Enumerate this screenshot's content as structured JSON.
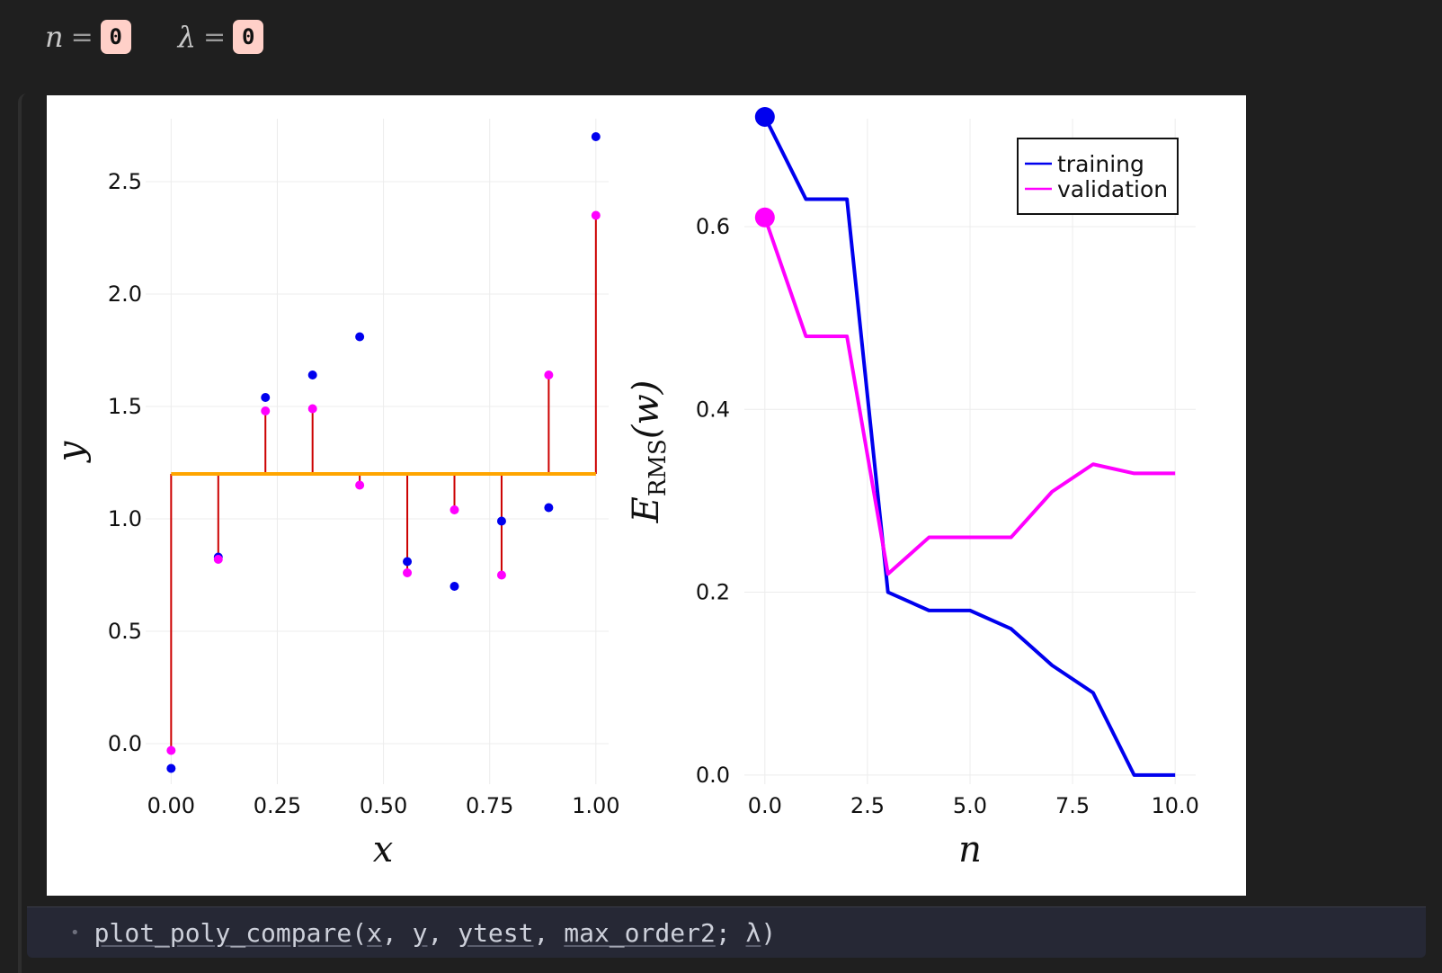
{
  "params": {
    "n": {
      "symbol": "n",
      "eq": "=",
      "value": "0"
    },
    "lambda": {
      "symbol": "λ",
      "eq": "=",
      "value": "0"
    }
  },
  "colors": {
    "training": "#0000ee",
    "validation": "#ff00ff",
    "fit_line": "#ffa500",
    "residual": "#cc0000",
    "background": "#1f1f1f",
    "code_bg": "#262835"
  },
  "chart_data": [
    {
      "type": "scatter",
      "xlabel": "x",
      "ylabel": "y",
      "xlim": [
        -0.06,
        1.03
      ],
      "ylim": [
        -0.18,
        2.78
      ],
      "xticks": [
        "0.00",
        "0.25",
        "0.50",
        "0.75",
        "1.00"
      ],
      "yticks": [
        "0.0",
        "0.5",
        "1.0",
        "1.5",
        "2.0",
        "2.5"
      ],
      "grid": true,
      "series": [
        {
          "role": "training",
          "x": [
            0.0,
            0.111,
            0.222,
            0.333,
            0.444,
            0.556,
            0.667,
            0.778,
            0.889,
            1.0
          ],
          "y": [
            -0.11,
            0.83,
            1.54,
            1.64,
            1.81,
            0.81,
            0.7,
            0.99,
            1.05,
            2.7
          ]
        },
        {
          "role": "validation",
          "x": [
            0.0,
            0.111,
            0.222,
            0.333,
            0.444,
            0.556,
            0.667,
            0.778,
            0.889,
            1.0
          ],
          "y": [
            -0.03,
            0.82,
            1.48,
            1.49,
            1.15,
            0.76,
            1.04,
            0.75,
            1.64,
            2.35
          ]
        },
        {
          "role": "fit",
          "x": [
            0.0,
            1.0
          ],
          "y": [
            1.2,
            1.2
          ]
        }
      ]
    },
    {
      "type": "line",
      "xlabel": "n",
      "ylabel": "E",
      "ylabel_sub": "RMS",
      "ylabel_arg": "(w)",
      "xlim": [
        -0.5,
        10.5
      ],
      "ylim": [
        -0.01,
        0.72
      ],
      "xticks": [
        "0.0",
        "2.5",
        "5.0",
        "7.5",
        "10.0"
      ],
      "yticks": [
        "0.0",
        "0.2",
        "0.4",
        "0.6"
      ],
      "grid": true,
      "legend_position": "top-right",
      "x": [
        0,
        1,
        2,
        3,
        4,
        5,
        6,
        7,
        8,
        9,
        10
      ],
      "series": [
        {
          "name": "training",
          "values": [
            0.72,
            0.63,
            0.63,
            0.2,
            0.18,
            0.18,
            0.16,
            0.12,
            0.09,
            0.0,
            0.0
          ]
        },
        {
          "name": "validation",
          "values": [
            0.61,
            0.48,
            0.48,
            0.22,
            0.26,
            0.26,
            0.26,
            0.31,
            0.34,
            0.33,
            0.33
          ]
        }
      ],
      "highlight_index": 0
    }
  ],
  "code": {
    "func": "plot_poly_compare",
    "open": "(",
    "arg1": "x",
    "sep1": ", ",
    "arg2": "y",
    "sep2": ", ",
    "arg3": "ytest",
    "sep3": ", ",
    "arg4": "max_order2",
    "sep4": "; ",
    "arg5": "λ",
    "close": ")"
  }
}
